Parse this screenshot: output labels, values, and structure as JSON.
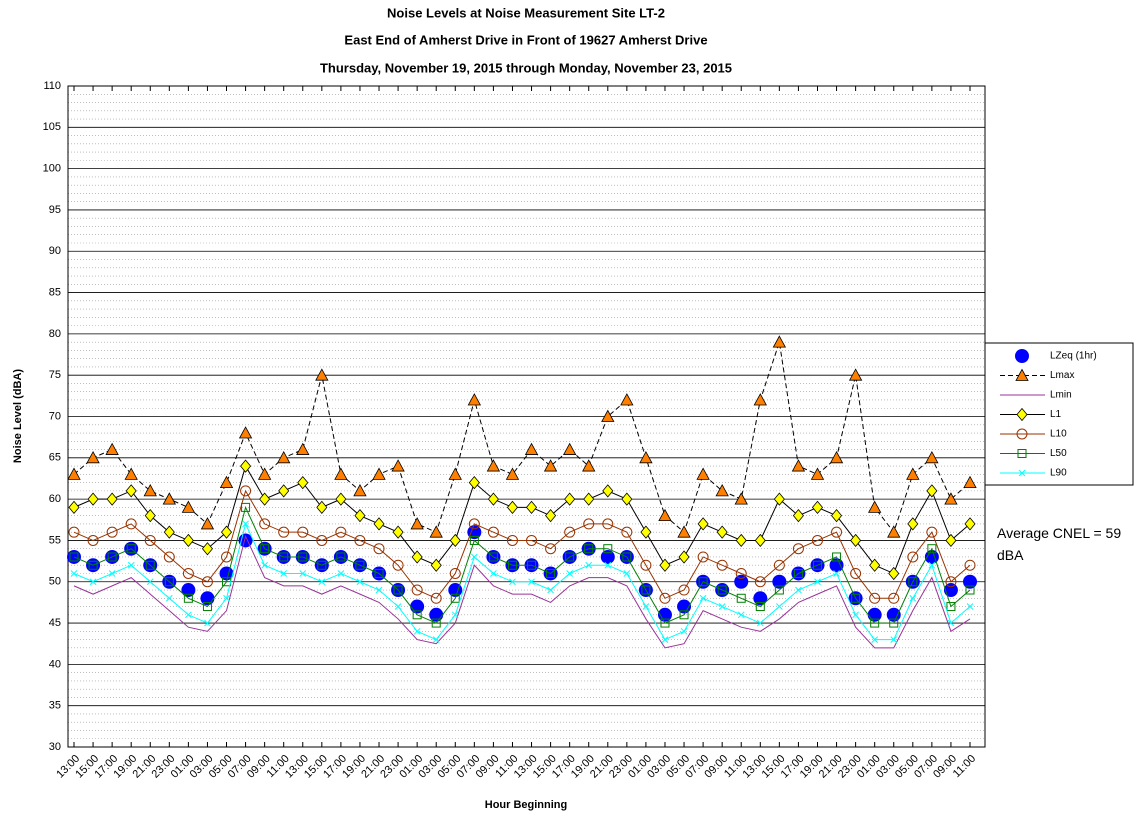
{
  "chart_data": {
    "type": "line",
    "title": "Noise Levels at Noise Measurement Site LT-2",
    "subtitle": [
      "East End of Amherst Drive in Front of 19627 Amherst Drive",
      "Thursday, November 19, 2015 through Monday, November 23, 2015"
    ],
    "x_label": "Hour Beginning",
    "y_label": "Noise Level (dBA)",
    "annotation": "Average CNEL = 59 dBA",
    "ylim": [
      30,
      110
    ],
    "yticks": [
      30,
      35,
      40,
      45,
      50,
      55,
      60,
      65,
      70,
      75,
      80,
      85,
      90,
      95,
      100,
      105,
      110
    ],
    "grid": true,
    "legend": "right",
    "categories": [
      "13:00",
      "15:00",
      "17:00",
      "19:00",
      "21:00",
      "23:00",
      "01:00",
      "03:00",
      "05:00",
      "07:00",
      "09:00",
      "11:00",
      "13:00",
      "15:00",
      "17:00",
      "19:00",
      "21:00",
      "23:00",
      "01:00",
      "03:00",
      "05:00",
      "07:00",
      "09:00",
      "11:00",
      "13:00",
      "15:00",
      "17:00",
      "19:00",
      "21:00",
      "23:00",
      "01:00",
      "03:00",
      "05:00",
      "07:00",
      "09:00",
      "11:00",
      "13:00",
      "15:00",
      "17:00",
      "19:00",
      "21:00",
      "23:00",
      "01:00",
      "03:00",
      "05:00",
      "07:00",
      "09:00",
      "11:00"
    ],
    "series": [
      {
        "name": "LZeq (1hr)",
        "color": "#0000ff",
        "marker": "circle",
        "line": "none",
        "values": [
          53,
          52,
          53,
          54,
          52,
          50,
          49,
          48,
          51,
          55,
          54,
          53,
          53,
          52,
          53,
          52,
          51,
          49,
          47,
          46,
          49,
          56,
          53,
          52,
          52,
          51,
          53,
          54,
          53,
          53,
          49,
          46,
          47,
          50,
          49,
          50,
          48,
          50,
          51,
          52,
          52,
          48,
          46,
          46,
          50,
          53,
          49,
          50
        ]
      },
      {
        "name": "Lmax",
        "color": "#ff8000",
        "marker": "triangle",
        "line": "dashed",
        "values": [
          63,
          65,
          66,
          63,
          61,
          60,
          59,
          57,
          62,
          68,
          63,
          65,
          66,
          75,
          63,
          61,
          63,
          64,
          57,
          56,
          63,
          72,
          64,
          63,
          66,
          64,
          66,
          64,
          70,
          72,
          65,
          58,
          56,
          63,
          61,
          60,
          72,
          79,
          64,
          63,
          65,
          75,
          59,
          56,
          63,
          65,
          60,
          62
        ]
      },
      {
        "name": "Lmin",
        "color": "#993399",
        "marker": "none",
        "line": "solid",
        "values": [
          49.5,
          48.5,
          49.5,
          50.5,
          48.5,
          46.5,
          44.5,
          44,
          46.5,
          55.5,
          50.5,
          49.5,
          49.5,
          48.5,
          49.5,
          48.5,
          47.5,
          45.5,
          43,
          42.5,
          45,
          52,
          49.5,
          48.5,
          48.5,
          47.5,
          49.5,
          50.5,
          50.5,
          49.5,
          45.5,
          42,
          42.5,
          46.5,
          45.5,
          44.5,
          44,
          45.5,
          47.5,
          48.5,
          49.5,
          44.5,
          42,
          42,
          46.5,
          50.5,
          44,
          45.5
        ]
      },
      {
        "name": "L1",
        "color": "#ffff00",
        "marker": "diamond",
        "line": "solid",
        "values": [
          59,
          60,
          60,
          61,
          58,
          56,
          55,
          54,
          56,
          64,
          60,
          61,
          62,
          59,
          60,
          58,
          57,
          56,
          53,
          52,
          55,
          62,
          60,
          59,
          59,
          58,
          60,
          60,
          61,
          60,
          56,
          52,
          53,
          57,
          56,
          55,
          55,
          60,
          58,
          59,
          58,
          55,
          52,
          51,
          57,
          61,
          55,
          57
        ]
      },
      {
        "name": "L10",
        "color": "#993300",
        "marker": "circle-open",
        "line": "solid",
        "values": [
          56,
          55,
          56,
          57,
          55,
          53,
          51,
          50,
          53,
          61,
          57,
          56,
          56,
          55,
          56,
          55,
          54,
          52,
          49,
          48,
          51,
          57,
          56,
          55,
          55,
          54,
          56,
          57,
          57,
          56,
          52,
          48,
          49,
          53,
          52,
          51,
          50,
          52,
          54,
          55,
          56,
          51,
          48,
          48,
          53,
          56,
          50,
          52
        ]
      },
      {
        "name": "L50",
        "color": "#008000",
        "marker": "square-open",
        "line": "solid",
        "values": [
          53,
          52,
          53,
          54,
          52,
          50,
          48,
          47,
          50,
          59,
          54,
          53,
          53,
          52,
          53,
          52,
          51,
          49,
          46,
          45,
          48,
          55,
          53,
          52,
          52,
          51,
          53,
          54,
          54,
          53,
          49,
          45,
          46,
          50,
          49,
          48,
          47,
          49,
          51,
          52,
          53,
          48,
          45,
          45,
          50,
          54,
          47,
          49
        ]
      },
      {
        "name": "L90",
        "color": "#00ffff",
        "marker": "x",
        "line": "solid",
        "values": [
          51,
          50,
          51,
          52,
          50,
          48,
          46,
          45,
          48,
          57,
          52,
          51,
          51,
          50,
          51,
          50,
          49,
          47,
          44,
          43,
          46,
          53,
          51,
          50,
          50,
          49,
          51,
          52,
          52,
          51,
          47,
          43,
          44,
          48,
          47,
          46,
          45,
          47,
          49,
          50,
          51,
          46,
          43,
          43,
          48,
          52,
          45,
          47
        ]
      }
    ]
  }
}
